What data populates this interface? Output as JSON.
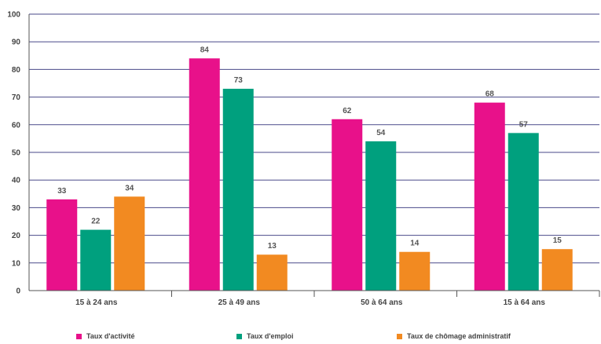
{
  "chart_data": {
    "type": "bar",
    "categories": [
      "15 à 24 ans",
      "25 à 49 ans",
      "50 à 64 ans",
      "15 à 64 ans"
    ],
    "series": [
      {
        "name": "Taux d'activité",
        "values": [
          33,
          84,
          62,
          68
        ],
        "color": "#e8118a"
      },
      {
        "name": "Taux d'emploi",
        "values": [
          22,
          73,
          54,
          57
        ],
        "color": "#00a07e"
      },
      {
        "name": "Taux de chômage administratif",
        "values": [
          34,
          13,
          14,
          15
        ],
        "color": "#f28a21"
      }
    ],
    "yticks": [
      "0",
      "10",
      "20",
      "30",
      "40",
      "50",
      "60",
      "70",
      "80",
      "90",
      "100"
    ],
    "ylim": [
      0,
      100
    ],
    "grid": true,
    "legend_position": "bottom",
    "grid_color": "#4a4a8a",
    "title": "",
    "xlabel": "",
    "ylabel": ""
  }
}
